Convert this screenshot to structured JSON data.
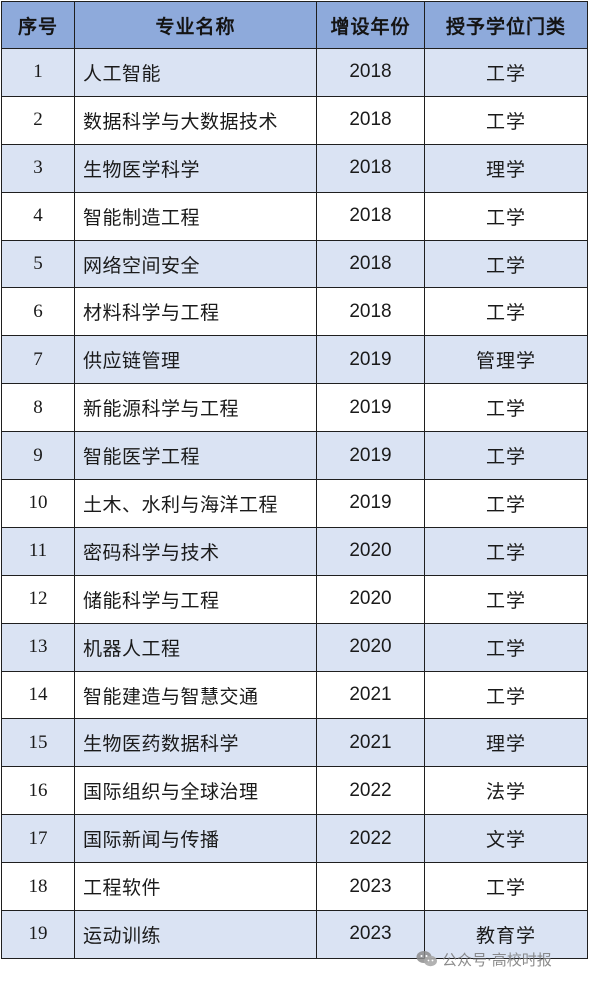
{
  "table": {
    "headers": [
      "序号",
      "专业名称",
      "增设年份",
      "授予学位门类"
    ],
    "rows": [
      {
        "no": "1",
        "name": "人工智能",
        "year": "2018",
        "category": "工学"
      },
      {
        "no": "2",
        "name": "数据科学与大数据技术",
        "year": "2018",
        "category": "工学"
      },
      {
        "no": "3",
        "name": "生物医学科学",
        "year": "2018",
        "category": "理学"
      },
      {
        "no": "4",
        "name": "智能制造工程",
        "year": "2018",
        "category": "工学"
      },
      {
        "no": "5",
        "name": "网络空间安全",
        "year": "2018",
        "category": "工学"
      },
      {
        "no": "6",
        "name": "材料科学与工程",
        "year": "2018",
        "category": "工学"
      },
      {
        "no": "7",
        "name": "供应链管理",
        "year": "2019",
        "category": "管理学"
      },
      {
        "no": "8",
        "name": "新能源科学与工程",
        "year": "2019",
        "category": "工学"
      },
      {
        "no": "9",
        "name": "智能医学工程",
        "year": "2019",
        "category": "工学"
      },
      {
        "no": "10",
        "name": "土木、水利与海洋工程",
        "year": "2019",
        "category": "工学"
      },
      {
        "no": "11",
        "name": "密码科学与技术",
        "year": "2020",
        "category": "工学"
      },
      {
        "no": "12",
        "name": "储能科学与工程",
        "year": "2020",
        "category": "工学"
      },
      {
        "no": "13",
        "name": "机器人工程",
        "year": "2020",
        "category": "工学"
      },
      {
        "no": "14",
        "name": "智能建造与智慧交通",
        "year": "2021",
        "category": "工学"
      },
      {
        "no": "15",
        "name": "生物医药数据科学",
        "year": "2021",
        "category": "理学"
      },
      {
        "no": "16",
        "name": "国际组织与全球治理",
        "year": "2022",
        "category": "法学"
      },
      {
        "no": "17",
        "name": "国际新闻与传播",
        "year": "2022",
        "category": "文学"
      },
      {
        "no": "18",
        "name": "工程软件",
        "year": "2023",
        "category": "工学"
      },
      {
        "no": "19",
        "name": "运动训练",
        "year": "2023",
        "category": "教育学"
      }
    ]
  },
  "watermark": {
    "text": "公众号·高校时报",
    "icon": "wechat-icon"
  },
  "colors": {
    "header_bg": "#8eaadb",
    "stripe_bg": "#dae3f3",
    "border": "#1f1f1f"
  }
}
